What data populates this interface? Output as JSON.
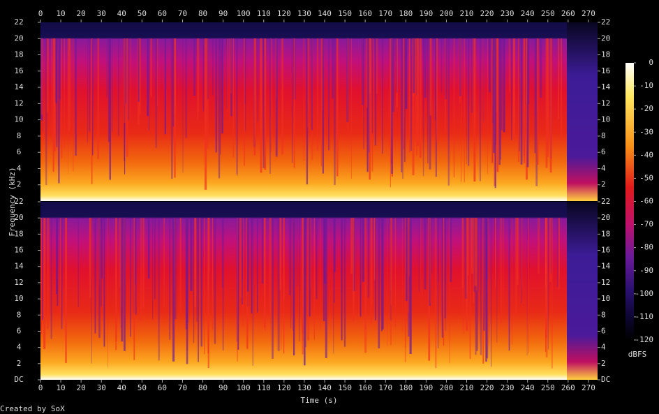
{
  "chart_data": {
    "type": "spectrogram",
    "xlabel": "Time (s)",
    "ylabel": "Frequency (kHz)",
    "credit": "Created by SoX",
    "xlim": [
      0,
      274.5
    ],
    "xticks": [
      0,
      10,
      20,
      30,
      40,
      50,
      60,
      70,
      80,
      90,
      100,
      110,
      120,
      130,
      140,
      150,
      160,
      170,
      180,
      190,
      200,
      210,
      220,
      230,
      240,
      250,
      260,
      270
    ],
    "panels": [
      {
        "ylim": [
          0,
          22
        ],
        "yticks": [
          2,
          4,
          6,
          8,
          10,
          12,
          14,
          16,
          18,
          20,
          22
        ]
      },
      {
        "ylim": [
          0,
          22
        ],
        "yticks": [
          {
            "value": 0,
            "label": "DC"
          },
          2,
          4,
          6,
          8,
          10,
          12,
          14,
          16,
          18,
          20,
          22
        ]
      }
    ],
    "colorbar": {
      "label": "dBFS",
      "lim": [
        -120,
        0
      ],
      "ticks": [
        0,
        -10,
        -20,
        -30,
        -40,
        -50,
        -60,
        -70,
        -80,
        -90,
        -100,
        -110,
        -120
      ]
    }
  }
}
